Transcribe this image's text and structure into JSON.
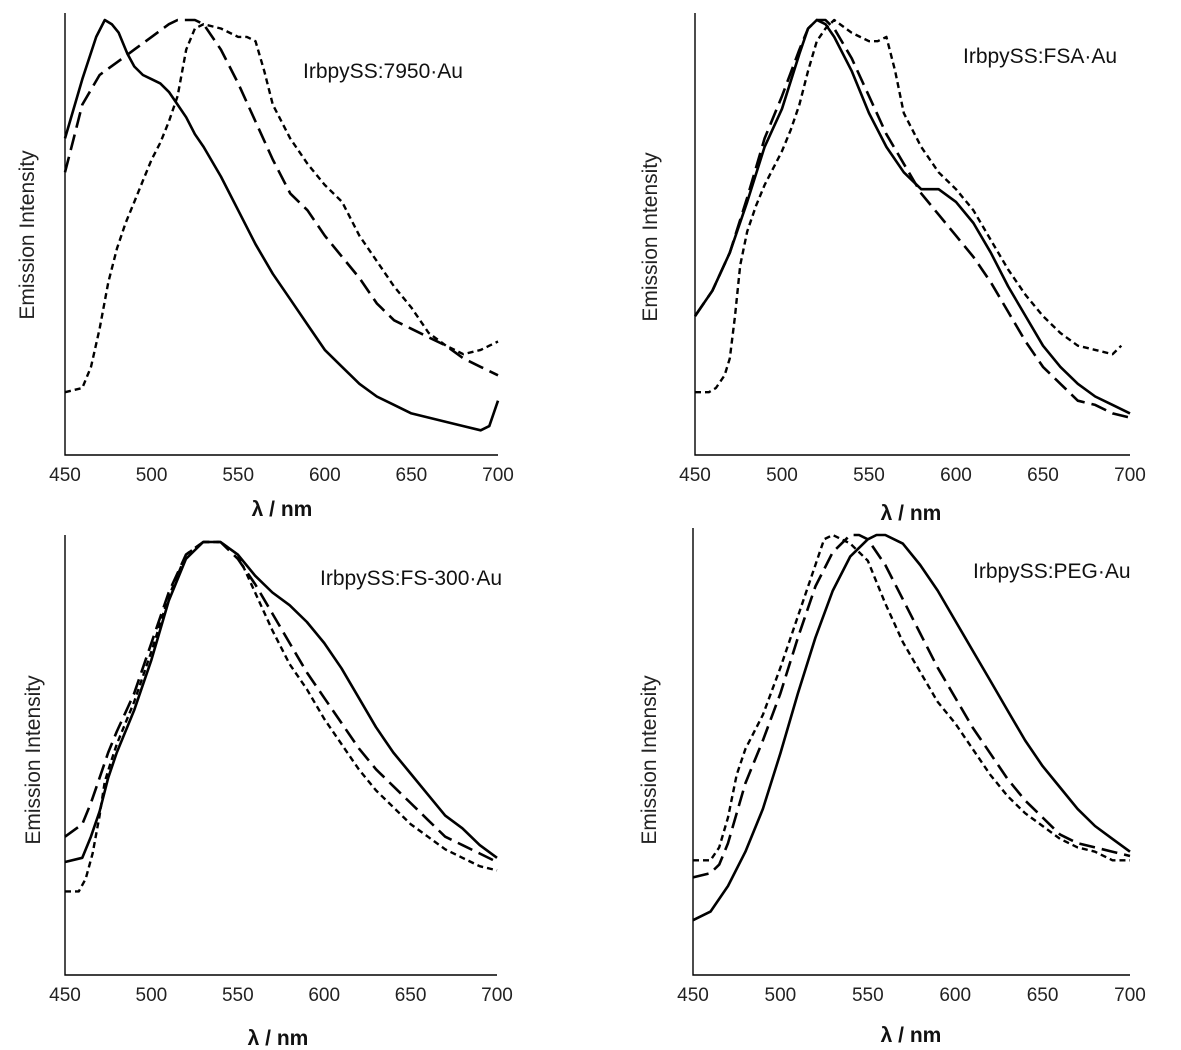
{
  "chart_data": [
    {
      "type": "line",
      "title": "IrbpySS:7950·Au",
      "xlabel": "λ / nm",
      "ylabel": "Emission Intensity",
      "xlim": [
        450,
        700
      ],
      "ylim": [
        0,
        1
      ],
      "xticks": [
        "450",
        "500",
        "550",
        "600",
        "650",
        "700"
      ],
      "grid": false,
      "series": [
        {
          "style": "solid",
          "x": [
            450,
            460,
            468,
            473,
            477,
            481,
            486,
            490,
            495,
            500,
            505,
            510,
            515,
            520,
            525,
            530,
            540,
            550,
            560,
            570,
            580,
            590,
            600,
            610,
            620,
            630,
            640,
            650,
            660,
            670,
            680,
            690,
            695,
            700
          ],
          "y": [
            0.72,
            0.86,
            0.96,
            1.0,
            0.99,
            0.97,
            0.92,
            0.89,
            0.87,
            0.86,
            0.85,
            0.83,
            0.8,
            0.77,
            0.73,
            0.7,
            0.63,
            0.55,
            0.47,
            0.4,
            0.34,
            0.28,
            0.22,
            0.18,
            0.14,
            0.11,
            0.09,
            0.07,
            0.06,
            0.05,
            0.04,
            0.03,
            0.04,
            0.1
          ]
        },
        {
          "style": "dashed",
          "x": [
            450,
            455,
            460,
            470,
            480,
            490,
            500,
            510,
            515,
            520,
            525,
            530,
            540,
            550,
            560,
            570,
            580,
            590,
            600,
            610,
            620,
            630,
            640,
            650,
            660,
            670,
            680,
            690,
            700
          ],
          "y": [
            0.64,
            0.72,
            0.8,
            0.87,
            0.9,
            0.93,
            0.96,
            0.99,
            1.0,
            1.0,
            1.0,
            0.99,
            0.93,
            0.85,
            0.76,
            0.67,
            0.59,
            0.55,
            0.49,
            0.44,
            0.39,
            0.33,
            0.29,
            0.27,
            0.25,
            0.23,
            0.2,
            0.18,
            0.16
          ]
        },
        {
          "style": "dotted",
          "x": [
            450,
            460,
            465,
            470,
            475,
            480,
            485,
            490,
            495,
            500,
            505,
            510,
            515,
            520,
            525,
            530,
            540,
            550,
            555,
            560,
            565,
            570,
            580,
            590,
            600,
            610,
            620,
            630,
            640,
            650,
            660,
            670,
            680,
            690,
            695,
            700
          ],
          "y": [
            0.12,
            0.13,
            0.18,
            0.27,
            0.38,
            0.46,
            0.52,
            0.57,
            0.62,
            0.67,
            0.71,
            0.76,
            0.82,
            0.93,
            0.98,
            0.99,
            0.98,
            0.96,
            0.96,
            0.95,
            0.88,
            0.8,
            0.72,
            0.66,
            0.61,
            0.57,
            0.49,
            0.43,
            0.37,
            0.32,
            0.26,
            0.23,
            0.21,
            0.22,
            0.23,
            0.24
          ]
        }
      ]
    },
    {
      "type": "line",
      "title": "IrbpySS:FSA·Au",
      "xlabel": "λ / nm",
      "ylabel": "Emission Intensity",
      "xlim": [
        450,
        700
      ],
      "ylim": [
        0,
        1
      ],
      "xticks": [
        "450",
        "500",
        "550",
        "600",
        "650",
        "700"
      ],
      "grid": false,
      "series": [
        {
          "style": "solid",
          "x": [
            450,
            460,
            470,
            480,
            490,
            500,
            510,
            515,
            520,
            525,
            530,
            540,
            550,
            560,
            570,
            580,
            590,
            600,
            610,
            620,
            630,
            640,
            650,
            660,
            670,
            680,
            690,
            700
          ],
          "y": [
            0.3,
            0.36,
            0.45,
            0.57,
            0.7,
            0.79,
            0.92,
            0.98,
            1.0,
            0.99,
            0.96,
            0.88,
            0.78,
            0.7,
            0.64,
            0.6,
            0.6,
            0.57,
            0.52,
            0.45,
            0.37,
            0.3,
            0.23,
            0.18,
            0.14,
            0.11,
            0.09,
            0.07
          ]
        },
        {
          "style": "dashed",
          "x": [
            450,
            460,
            470,
            480,
            490,
            500,
            510,
            515,
            520,
            525,
            530,
            540,
            550,
            560,
            570,
            580,
            590,
            600,
            610,
            620,
            630,
            640,
            650,
            660,
            670,
            680,
            690,
            700
          ],
          "y": [
            0.3,
            0.36,
            0.45,
            0.58,
            0.72,
            0.82,
            0.93,
            0.98,
            1.0,
            1.0,
            0.98,
            0.91,
            0.82,
            0.73,
            0.66,
            0.59,
            0.54,
            0.49,
            0.44,
            0.38,
            0.31,
            0.24,
            0.18,
            0.14,
            0.1,
            0.09,
            0.07,
            0.06
          ]
        },
        {
          "style": "dotted",
          "x": [
            450,
            458,
            462,
            467,
            470,
            473,
            476,
            480,
            485,
            490,
            495,
            500,
            505,
            510,
            515,
            520,
            525,
            530,
            540,
            550,
            555,
            560,
            565,
            570,
            580,
            590,
            600,
            610,
            620,
            630,
            640,
            650,
            660,
            670,
            680,
            690,
            695
          ],
          "y": [
            0.12,
            0.12,
            0.13,
            0.16,
            0.2,
            0.3,
            0.42,
            0.5,
            0.56,
            0.61,
            0.65,
            0.69,
            0.74,
            0.8,
            0.88,
            0.95,
            0.98,
            1.0,
            0.97,
            0.95,
            0.95,
            0.96,
            0.88,
            0.78,
            0.7,
            0.64,
            0.6,
            0.55,
            0.48,
            0.41,
            0.35,
            0.3,
            0.26,
            0.23,
            0.22,
            0.21,
            0.23
          ]
        }
      ]
    },
    {
      "type": "line",
      "title": "IrbpySS:FS-300·Au",
      "xlabel": "λ / nm",
      "ylabel": "Emission Intensity",
      "xlim": [
        450,
        700
      ],
      "ylim": [
        0,
        1
      ],
      "xticks": [
        "450",
        "500",
        "550",
        "600",
        "650",
        "700"
      ],
      "grid": false,
      "series": [
        {
          "style": "solid",
          "x": [
            450,
            460,
            465,
            470,
            475,
            480,
            490,
            500,
            510,
            520,
            530,
            540,
            550,
            560,
            570,
            580,
            590,
            600,
            610,
            620,
            630,
            640,
            650,
            660,
            670,
            680,
            690,
            700
          ],
          "y": [
            0.24,
            0.25,
            0.3,
            0.36,
            0.44,
            0.5,
            0.6,
            0.72,
            0.86,
            0.96,
            1.0,
            1.0,
            0.97,
            0.92,
            0.88,
            0.85,
            0.81,
            0.76,
            0.7,
            0.63,
            0.56,
            0.5,
            0.45,
            0.4,
            0.35,
            0.32,
            0.28,
            0.25
          ]
        },
        {
          "style": "dashed",
          "x": [
            450,
            460,
            465,
            470,
            475,
            480,
            490,
            500,
            510,
            520,
            530,
            540,
            550,
            560,
            570,
            580,
            590,
            600,
            610,
            620,
            630,
            640,
            650,
            660,
            670,
            680,
            690,
            700
          ],
          "y": [
            0.3,
            0.33,
            0.38,
            0.44,
            0.5,
            0.55,
            0.64,
            0.76,
            0.88,
            0.97,
            1.0,
            1.0,
            0.96,
            0.9,
            0.83,
            0.76,
            0.69,
            0.63,
            0.57,
            0.51,
            0.46,
            0.42,
            0.38,
            0.34,
            0.3,
            0.28,
            0.26,
            0.24
          ]
        },
        {
          "style": "dotted",
          "x": [
            450,
            458,
            462,
            466,
            470,
            473,
            476,
            480,
            490,
            500,
            510,
            520,
            530,
            540,
            550,
            560,
            570,
            580,
            590,
            600,
            610,
            620,
            630,
            640,
            650,
            660,
            670,
            680,
            690,
            700
          ],
          "y": [
            0.17,
            0.17,
            0.2,
            0.26,
            0.35,
            0.43,
            0.47,
            0.52,
            0.62,
            0.74,
            0.87,
            0.97,
            1.0,
            1.0,
            0.97,
            0.88,
            0.79,
            0.71,
            0.65,
            0.58,
            0.52,
            0.46,
            0.41,
            0.37,
            0.33,
            0.3,
            0.27,
            0.25,
            0.23,
            0.22
          ]
        }
      ]
    },
    {
      "type": "line",
      "title": "IrbpySS:PEG·Au",
      "xlabel": "λ / nm",
      "ylabel": "Emission Intensity",
      "xlim": [
        450,
        700
      ],
      "ylim": [
        0,
        1
      ],
      "xticks": [
        "450",
        "500",
        "550",
        "600",
        "650",
        "700"
      ],
      "grid": false,
      "series": [
        {
          "style": "solid",
          "x": [
            450,
            460,
            470,
            480,
            490,
            500,
            510,
            520,
            530,
            540,
            550,
            555,
            560,
            570,
            580,
            590,
            600,
            610,
            620,
            630,
            640,
            650,
            660,
            670,
            680,
            690,
            700
          ],
          "y": [
            0.1,
            0.12,
            0.18,
            0.26,
            0.36,
            0.49,
            0.63,
            0.76,
            0.87,
            0.95,
            0.99,
            1.0,
            1.0,
            0.98,
            0.93,
            0.87,
            0.8,
            0.73,
            0.66,
            0.59,
            0.52,
            0.46,
            0.41,
            0.36,
            0.32,
            0.29,
            0.26
          ]
        },
        {
          "style": "dashed",
          "x": [
            450,
            460,
            465,
            470,
            475,
            480,
            490,
            500,
            510,
            520,
            530,
            540,
            545,
            550,
            560,
            570,
            580,
            590,
            600,
            610,
            620,
            630,
            640,
            650,
            660,
            670,
            680,
            690,
            700
          ],
          "y": [
            0.2,
            0.21,
            0.23,
            0.28,
            0.35,
            0.42,
            0.52,
            0.63,
            0.76,
            0.88,
            0.96,
            1.0,
            1.0,
            0.99,
            0.93,
            0.85,
            0.77,
            0.69,
            0.62,
            0.55,
            0.49,
            0.43,
            0.38,
            0.34,
            0.3,
            0.28,
            0.27,
            0.26,
            0.25
          ]
        },
        {
          "style": "dotted",
          "x": [
            450,
            460,
            465,
            470,
            475,
            480,
            490,
            500,
            510,
            520,
            525,
            530,
            540,
            550,
            560,
            570,
            580,
            590,
            600,
            610,
            620,
            630,
            640,
            650,
            660,
            670,
            680,
            690,
            700
          ],
          "y": [
            0.24,
            0.24,
            0.27,
            0.34,
            0.44,
            0.5,
            0.58,
            0.69,
            0.81,
            0.93,
            0.99,
            1.0,
            0.98,
            0.94,
            0.84,
            0.75,
            0.68,
            0.61,
            0.56,
            0.5,
            0.44,
            0.39,
            0.35,
            0.32,
            0.29,
            0.27,
            0.26,
            0.24,
            0.24
          ]
        }
      ]
    }
  ]
}
